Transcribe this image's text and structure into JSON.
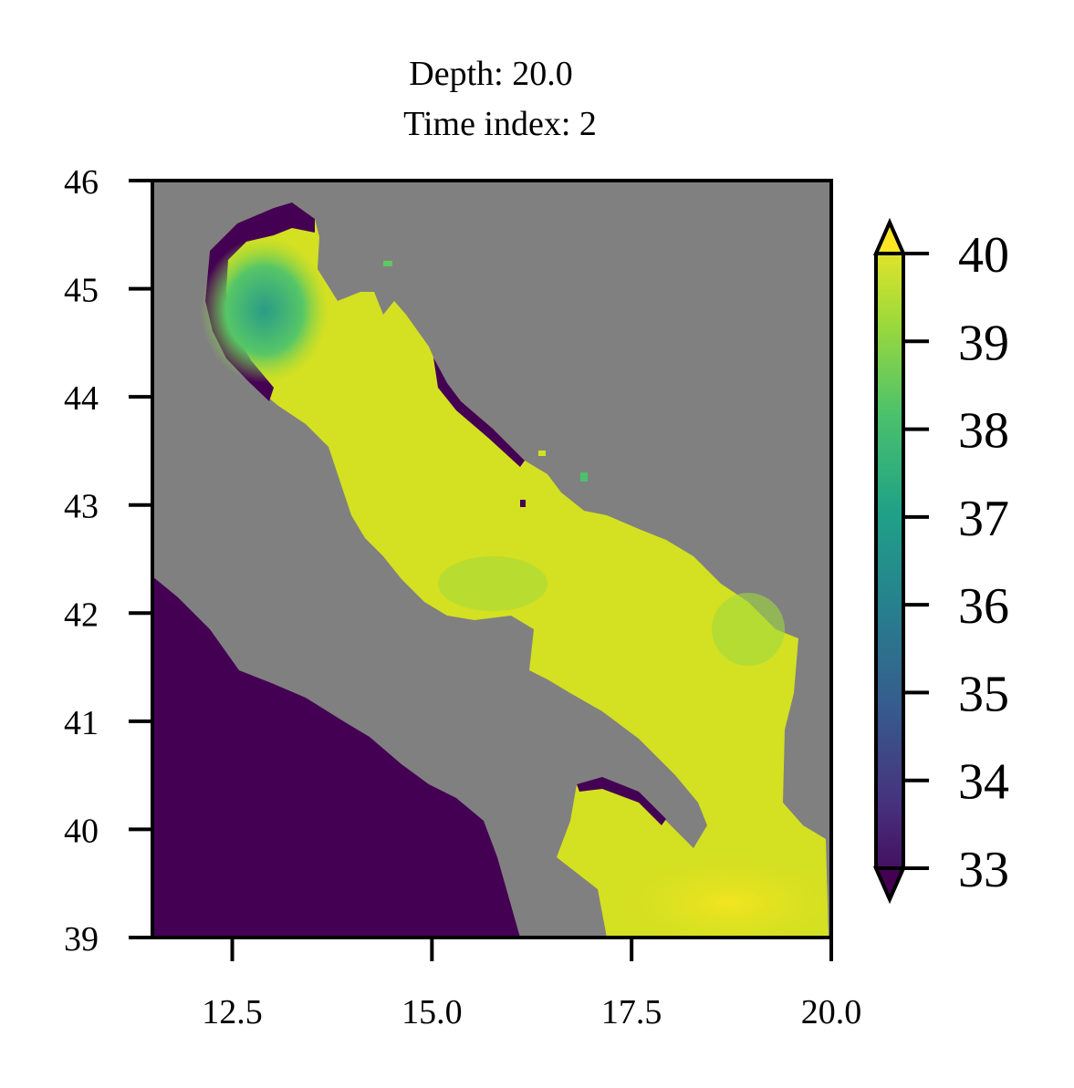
{
  "chart_data": {
    "type": "heatmap",
    "title_lines": [
      "Depth: 20.0",
      "Time index: 2"
    ],
    "xlabel": "",
    "ylabel": "",
    "xlim": [
      11.5,
      20.0
    ],
    "ylim": [
      39,
      46
    ],
    "x_ticks": [
      12.5,
      15.0,
      17.5,
      20.0
    ],
    "x_tick_labels": [
      "12.5",
      "15.0",
      "17.5",
      "20.0"
    ],
    "y_ticks": [
      39,
      40,
      41,
      42,
      43,
      44,
      45,
      46
    ],
    "y_tick_labels": [
      "39",
      "40",
      "41",
      "42",
      "43",
      "44",
      "45",
      "46"
    ],
    "colorbar": {
      "colormap": "viridis",
      "vmin": 33,
      "vmax": 40,
      "extend": "both",
      "ticks": [
        33,
        34,
        35,
        36,
        37,
        38,
        39,
        40
      ],
      "tick_labels": [
        "33",
        "34",
        "35",
        "36",
        "37",
        "38",
        "39",
        "40"
      ]
    },
    "land_color": "#808080",
    "below_min_color": "#440154",
    "field_description_values": {
      "typical_value": 39.2,
      "northwest_min_value": 37.2,
      "southeast_max_value": 39.9
    }
  }
}
